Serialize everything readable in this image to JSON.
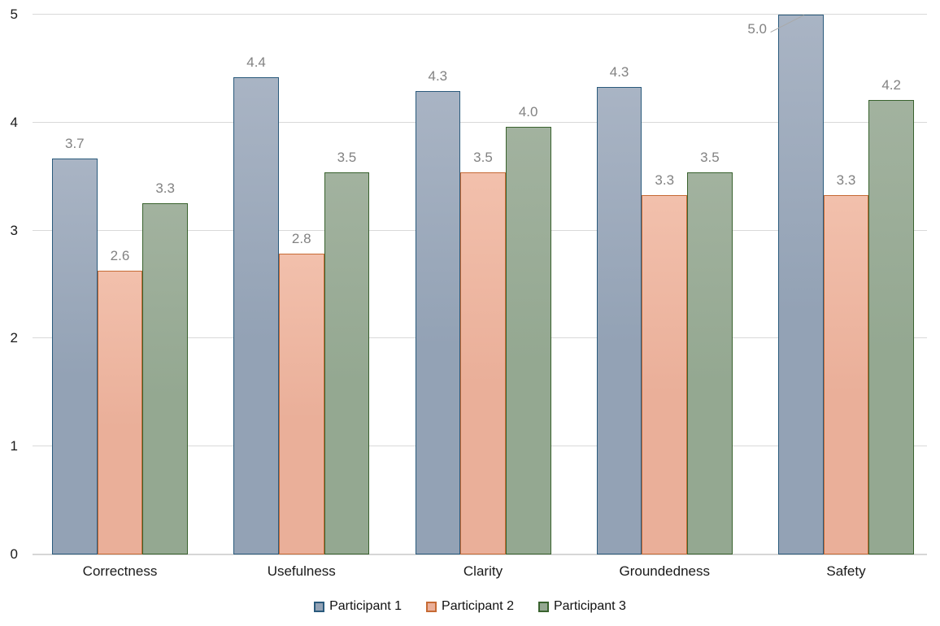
{
  "chart_data": {
    "type": "bar",
    "title": "",
    "xlabel": "",
    "ylabel": "",
    "categories": [
      "Correctness",
      "Usefulness",
      "Clarity",
      "Groundedness",
      "Safety"
    ],
    "series": [
      {
        "name": "Participant 1",
        "values": [
          3.67,
          4.42,
          4.29,
          4.33,
          5.0
        ],
        "labels": [
          "3.7",
          "4.4",
          "4.3",
          "4.3",
          "5.0"
        ],
        "fill": "#93A2B5",
        "fill_top": "#A9B4C4",
        "border": "#2A5A7C"
      },
      {
        "name": "Participant 2",
        "values": [
          2.63,
          2.79,
          3.54,
          3.33,
          3.33
        ],
        "labels": [
          "2.6",
          "2.8",
          "3.5",
          "3.3",
          "3.3"
        ],
        "fill": "#EAAF99",
        "fill_top": "#F2C0AC",
        "border": "#C66A34"
      },
      {
        "name": "Participant 3",
        "values": [
          3.25,
          3.54,
          3.96,
          3.54,
          4.21
        ],
        "labels": [
          "3.3",
          "3.5",
          "4.0",
          "3.5",
          "4.2"
        ],
        "fill": "#94A891",
        "fill_top": "#A2B29F",
        "border": "#39622E"
      }
    ],
    "ylim": [
      0,
      5
    ],
    "yticks": [
      0,
      1,
      2,
      3,
      4,
      5
    ],
    "grid": true,
    "legend_position": "bottom",
    "callout": {
      "series": 0,
      "category": 4
    }
  },
  "colors": {
    "gridline": "#D9D9D9",
    "axis_line": "#D6D6D6",
    "value_label": "#828282",
    "axis_text": "#1A1A1A",
    "leader_line": "#A9A9A9",
    "background": "#FFFFFF"
  }
}
